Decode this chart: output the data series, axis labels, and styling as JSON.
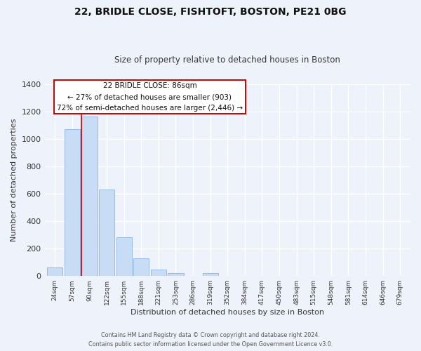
{
  "title1": "22, BRIDLE CLOSE, FISHTOFT, BOSTON, PE21 0BG",
  "title2": "Size of property relative to detached houses in Boston",
  "xlabel": "Distribution of detached houses by size in Boston",
  "ylabel": "Number of detached properties",
  "bar_labels": [
    "24sqm",
    "57sqm",
    "90sqm",
    "122sqm",
    "155sqm",
    "188sqm",
    "221sqm",
    "253sqm",
    "286sqm",
    "319sqm",
    "352sqm",
    "384sqm",
    "417sqm",
    "450sqm",
    "483sqm",
    "515sqm",
    "548sqm",
    "581sqm",
    "614sqm",
    "646sqm",
    "679sqm"
  ],
  "bar_values": [
    65,
    1070,
    1160,
    630,
    285,
    130,
    48,
    22,
    0,
    20,
    0,
    0,
    0,
    0,
    0,
    0,
    0,
    0,
    0,
    0,
    0
  ],
  "bar_color": "#c9dcf5",
  "bar_edge_color": "#8db4e2",
  "ylim": [
    0,
    1400
  ],
  "yticks": [
    0,
    200,
    400,
    600,
    800,
    1000,
    1200,
    1400
  ],
  "vline_index": 2,
  "vline_color": "#cc0000",
  "ann_line1": "22 BRIDLE CLOSE: 86sqm",
  "ann_line2": "← 27% of detached houses are smaller (903)",
  "ann_line3": "72% of semi-detached houses are larger (2,446) →",
  "footer1": "Contains HM Land Registry data © Crown copyright and database right 2024.",
  "footer2": "Contains public sector information licensed under the Open Government Licence v3.0.",
  "background_color": "#eef2fb",
  "grid_color": "#ffffff"
}
